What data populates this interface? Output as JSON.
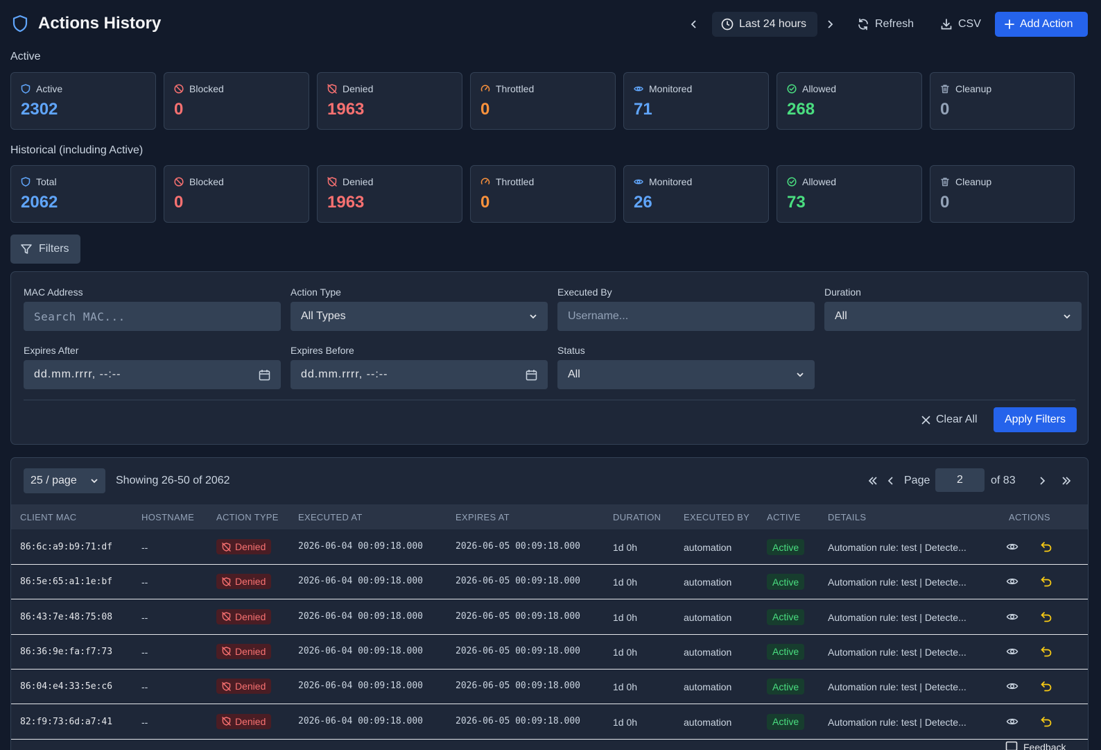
{
  "header": {
    "title": "Actions History",
    "time_range": "Last 24 hours",
    "refresh": "Refresh",
    "csv": "CSV",
    "add_action": "Add Action"
  },
  "active": {
    "label": "Active",
    "cards": [
      {
        "label": "Active",
        "value": "2302",
        "color": "#60a5fa",
        "icon": "shield-icon"
      },
      {
        "label": "Blocked",
        "value": "0",
        "color": "#f87171",
        "icon": "ban-icon"
      },
      {
        "label": "Denied",
        "value": "1963",
        "color": "#f87171",
        "icon": "shield-off-icon"
      },
      {
        "label": "Throttled",
        "value": "0",
        "color": "#fb923c",
        "icon": "gauge-icon"
      },
      {
        "label": "Monitored",
        "value": "71",
        "color": "#60a5fa",
        "icon": "eye-icon"
      },
      {
        "label": "Allowed",
        "value": "268",
        "color": "#4ade80",
        "icon": "check-circle-icon"
      },
      {
        "label": "Cleanup",
        "value": "0",
        "color": "#94a3b8",
        "icon": "trash-icon"
      }
    ]
  },
  "historical": {
    "label": "Historical (including Active)",
    "cards": [
      {
        "label": "Total",
        "value": "2062",
        "color": "#60a5fa",
        "icon": "shield-icon"
      },
      {
        "label": "Blocked",
        "value": "0",
        "color": "#f87171",
        "icon": "ban-icon"
      },
      {
        "label": "Denied",
        "value": "1963",
        "color": "#f87171",
        "icon": "shield-off-icon"
      },
      {
        "label": "Throttled",
        "value": "0",
        "color": "#fb923c",
        "icon": "gauge-icon"
      },
      {
        "label": "Monitored",
        "value": "26",
        "color": "#60a5fa",
        "icon": "eye-icon"
      },
      {
        "label": "Allowed",
        "value": "73",
        "color": "#4ade80",
        "icon": "check-circle-icon"
      },
      {
        "label": "Cleanup",
        "value": "0",
        "color": "#94a3b8",
        "icon": "trash-icon"
      }
    ]
  },
  "filters": {
    "toggle_label": "Filters",
    "mac_label": "MAC Address",
    "mac_placeholder": "Search MAC...",
    "action_type_label": "Action Type",
    "action_type_value": "All Types",
    "executed_by_label": "Executed By",
    "executed_by_placeholder": "Username...",
    "duration_label": "Duration",
    "duration_value": "All",
    "expires_after_label": "Expires After",
    "expires_after_value": "dd.mm.rrrr, --:--",
    "expires_before_label": "Expires Before",
    "expires_before_value": "dd.mm.rrrr, --:--",
    "status_label": "Status",
    "status_value": "All",
    "clear_all": "Clear All",
    "apply": "Apply Filters"
  },
  "table": {
    "per_page": "25 / page",
    "showing": "Showing 26-50 of 2062",
    "page_label": "Page",
    "page_value": "2",
    "of_pages": "of 83",
    "columns": [
      "CLIENT MAC",
      "HOSTNAME",
      "ACTION TYPE",
      "EXECUTED AT",
      "EXPIRES AT",
      "DURATION",
      "EXECUTED BY",
      "ACTIVE",
      "DETAILS",
      "ACTIONS"
    ],
    "rows": [
      {
        "mac": "86:6c:a9:b9:71:df",
        "hostname": "--",
        "action": "Denied",
        "executed_at": "2026-06-04 00:09:18.000",
        "expires_at": "2026-06-05 00:09:18.000",
        "duration": "1d 0h",
        "executed_by": "automation",
        "active": "Active",
        "details": "Automation rule: test | Detecte..."
      },
      {
        "mac": "86:5e:65:a1:1e:bf",
        "hostname": "--",
        "action": "Denied",
        "executed_at": "2026-06-04 00:09:18.000",
        "expires_at": "2026-06-05 00:09:18.000",
        "duration": "1d 0h",
        "executed_by": "automation",
        "active": "Active",
        "details": "Automation rule: test | Detecte..."
      },
      {
        "mac": "86:43:7e:48:75:08",
        "hostname": "--",
        "action": "Denied",
        "executed_at": "2026-06-04 00:09:18.000",
        "expires_at": "2026-06-05 00:09:18.000",
        "duration": "1d 0h",
        "executed_by": "automation",
        "active": "Active",
        "details": "Automation rule: test | Detecte..."
      },
      {
        "mac": "86:36:9e:fa:f7:73",
        "hostname": "--",
        "action": "Denied",
        "executed_at": "2026-06-04 00:09:18.000",
        "expires_at": "2026-06-05 00:09:18.000",
        "duration": "1d 0h",
        "executed_by": "automation",
        "active": "Active",
        "details": "Automation rule: test | Detecte..."
      },
      {
        "mac": "86:04:e4:33:5e:c6",
        "hostname": "--",
        "action": "Denied",
        "executed_at": "2026-06-04 00:09:18.000",
        "expires_at": "2026-06-05 00:09:18.000",
        "duration": "1d 0h",
        "executed_by": "automation",
        "active": "Active",
        "details": "Automation rule: test | Detecte..."
      },
      {
        "mac": "82:f9:73:6d:a7:41",
        "hostname": "--",
        "action": "Denied",
        "executed_at": "2026-06-04 00:09:18.000",
        "expires_at": "2026-06-05 00:09:18.000",
        "duration": "1d 0h",
        "executed_by": "automation",
        "active": "Active",
        "details": "Automation rule: test | Detecte..."
      }
    ]
  },
  "feedback": "Feedback"
}
